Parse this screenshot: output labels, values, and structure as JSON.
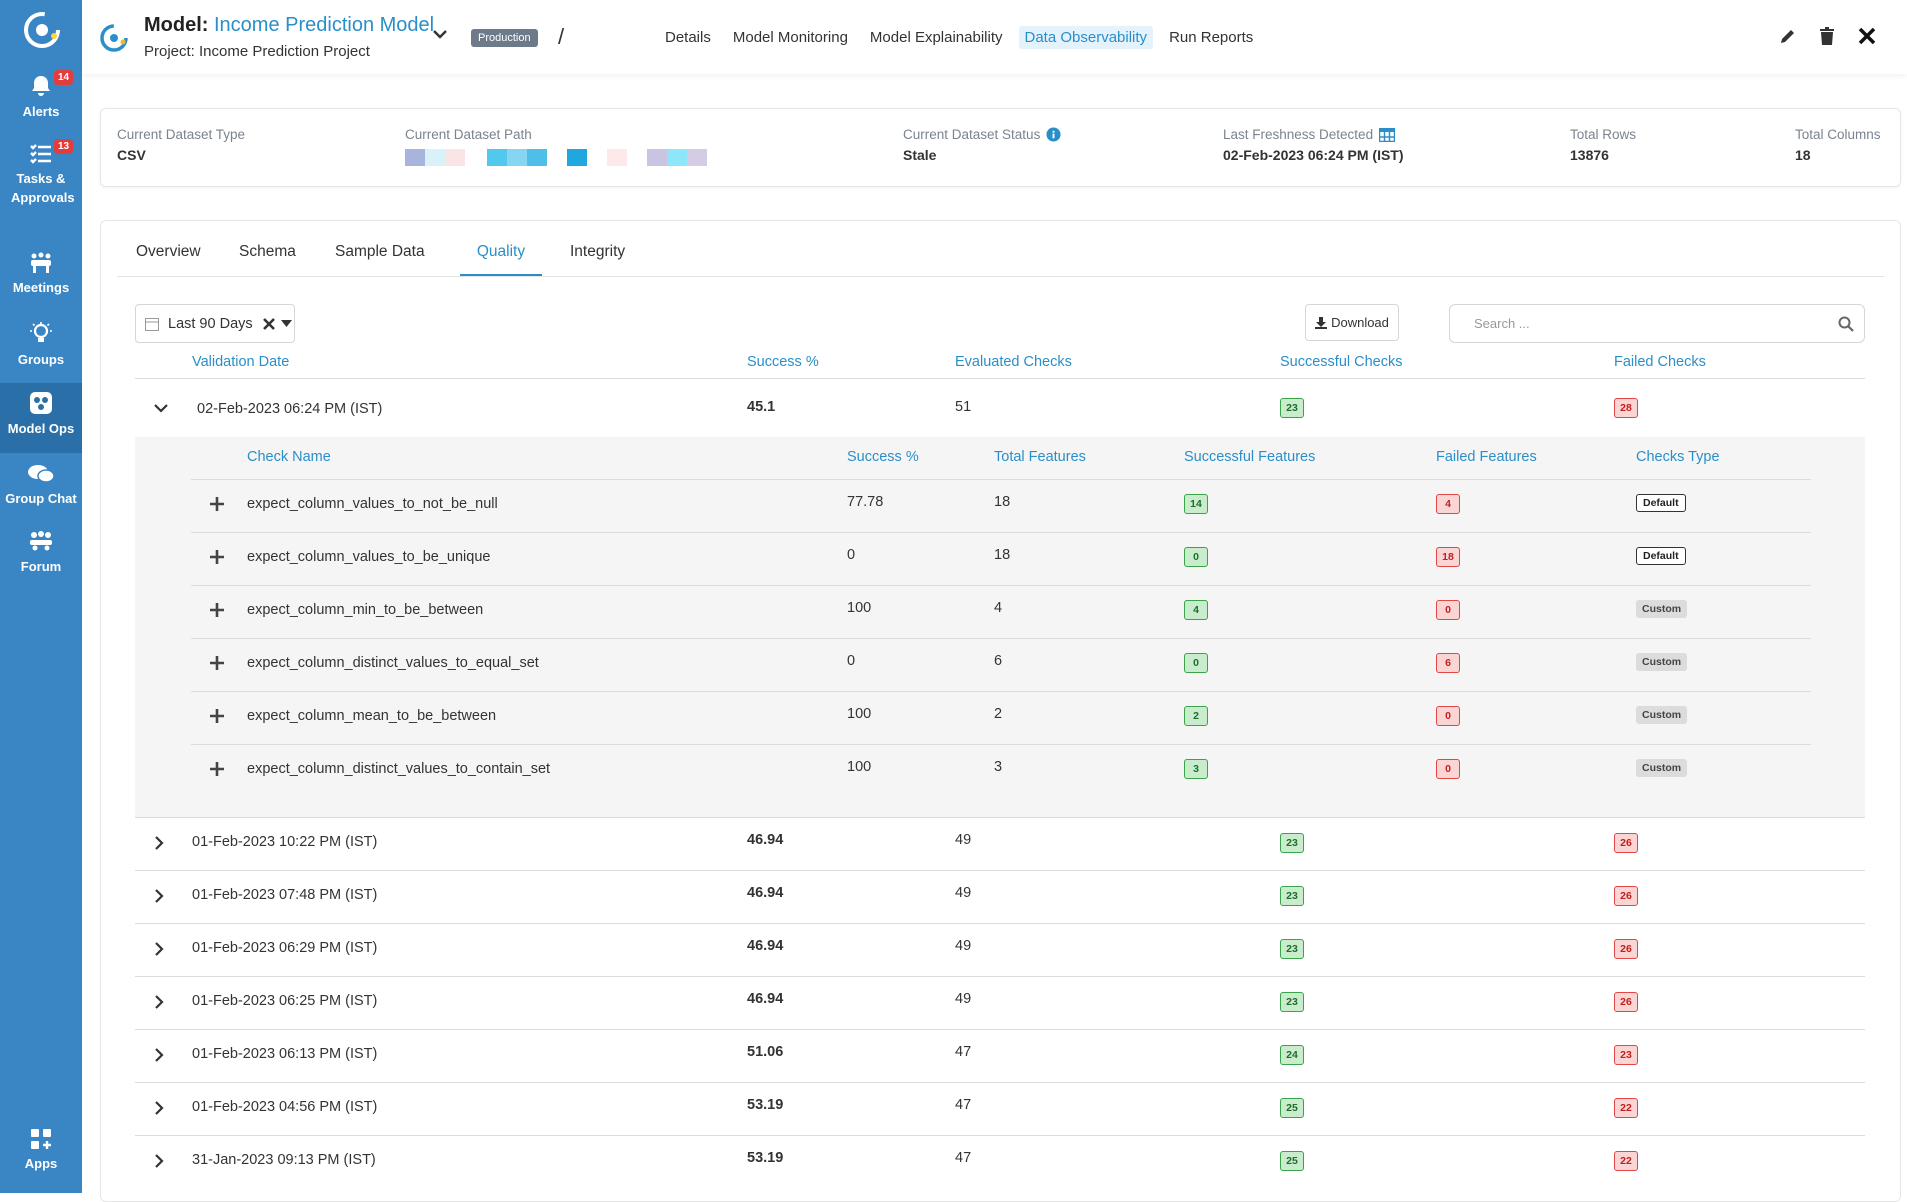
{
  "sidebar": {
    "items": [
      {
        "label": "Alerts",
        "badge": "14",
        "icon": "bell-icon"
      },
      {
        "label": "Tasks & Approvals",
        "badge": "13",
        "icon": "checklist-icon"
      },
      {
        "label": "Meetings",
        "icon": "meetings-icon"
      },
      {
        "label": "Groups",
        "icon": "lightbulb-icon"
      },
      {
        "label": "Model Ops",
        "icon": "model-ops-icon"
      },
      {
        "label": "Group Chat",
        "icon": "chat-icon"
      },
      {
        "label": "Forum",
        "icon": "forum-icon"
      },
      {
        "label": "Apps",
        "icon": "apps-icon"
      }
    ],
    "colors": {
      "bg": "#3a86c4",
      "active": "#2a6fa8",
      "badge": "#e23c3c"
    }
  },
  "header": {
    "model_prefix": "Model:",
    "model_name": "Income Prediction Model",
    "project": "Project: Income Prediction Project",
    "env_badge": "Production",
    "separator": "/",
    "tabs": [
      "Details",
      "Model Monitoring",
      "Model Explainability",
      "Data Observability",
      "Run Reports"
    ],
    "active_tab": "Data Observability"
  },
  "info": {
    "dataset_type_label": "Current Dataset Type",
    "dataset_type": "CSV",
    "dataset_path_label": "Current Dataset Path",
    "dataset_status_label": "Current Dataset Status",
    "dataset_status": "Stale",
    "freshness_label": "Last Freshness Detected",
    "freshness": "02-Feb-2023 06:24 PM (IST)",
    "rows_label": "Total Rows",
    "rows": "13876",
    "columns_label": "Total Columns",
    "columns": "18"
  },
  "sub_tabs": [
    "Overview",
    "Schema",
    "Sample Data",
    "Quality",
    "Integrity"
  ],
  "active_sub_tab": "Quality",
  "toolbar": {
    "filter": "Last 90 Days",
    "download": "Download",
    "search_placeholder": "Search ..."
  },
  "table": {
    "headers": [
      "Validation Date",
      "Success %",
      "Evaluated Checks",
      "Successful Checks",
      "Failed Checks"
    ],
    "rows": [
      {
        "date": "02-Feb-2023 06:24 PM (IST)",
        "success": "45.1",
        "evaluated": "51",
        "successful": "23",
        "failed": "28",
        "expanded": true
      },
      {
        "date": "01-Feb-2023 10:22 PM (IST)",
        "success": "46.94",
        "evaluated": "49",
        "successful": "23",
        "failed": "26"
      },
      {
        "date": "01-Feb-2023 07:48 PM (IST)",
        "success": "46.94",
        "evaluated": "49",
        "successful": "23",
        "failed": "26"
      },
      {
        "date": "01-Feb-2023 06:29 PM (IST)",
        "success": "46.94",
        "evaluated": "49",
        "successful": "23",
        "failed": "26"
      },
      {
        "date": "01-Feb-2023 06:25 PM (IST)",
        "success": "46.94",
        "evaluated": "49",
        "successful": "23",
        "failed": "26"
      },
      {
        "date": "01-Feb-2023 06:13 PM (IST)",
        "success": "51.06",
        "evaluated": "47",
        "successful": "24",
        "failed": "23"
      },
      {
        "date": "01-Feb-2023 04:56 PM (IST)",
        "success": "53.19",
        "evaluated": "47",
        "successful": "25",
        "failed": "22"
      },
      {
        "date": "31-Jan-2023 09:13 PM (IST)",
        "success": "53.19",
        "evaluated": "47",
        "successful": "25",
        "failed": "22"
      }
    ]
  },
  "checks": {
    "headers": [
      "Check Name",
      "Success %",
      "Total Features",
      "Successful Features",
      "Failed Features",
      "Checks Type"
    ],
    "rows": [
      {
        "name": "expect_column_values_to_not_be_null",
        "success": "77.78",
        "total": "18",
        "successful": "14",
        "failed": "4",
        "type": "Default"
      },
      {
        "name": "expect_column_values_to_be_unique",
        "success": "0",
        "total": "18",
        "successful": "0",
        "failed": "18",
        "type": "Default"
      },
      {
        "name": "expect_column_min_to_be_between",
        "success": "100",
        "total": "4",
        "successful": "4",
        "failed": "0",
        "type": "Custom"
      },
      {
        "name": "expect_column_distinct_values_to_equal_set",
        "success": "0",
        "total": "6",
        "successful": "0",
        "failed": "6",
        "type": "Custom"
      },
      {
        "name": "expect_column_mean_to_be_between",
        "success": "100",
        "total": "2",
        "successful": "2",
        "failed": "0",
        "type": "Custom"
      },
      {
        "name": "expect_column_distinct_values_to_contain_set",
        "success": "100",
        "total": "3",
        "successful": "3",
        "failed": "0",
        "type": "Custom"
      }
    ]
  },
  "colors": {
    "accent": "#2a8fc9",
    "success": "#3aa44a",
    "fail": "#e24747"
  }
}
